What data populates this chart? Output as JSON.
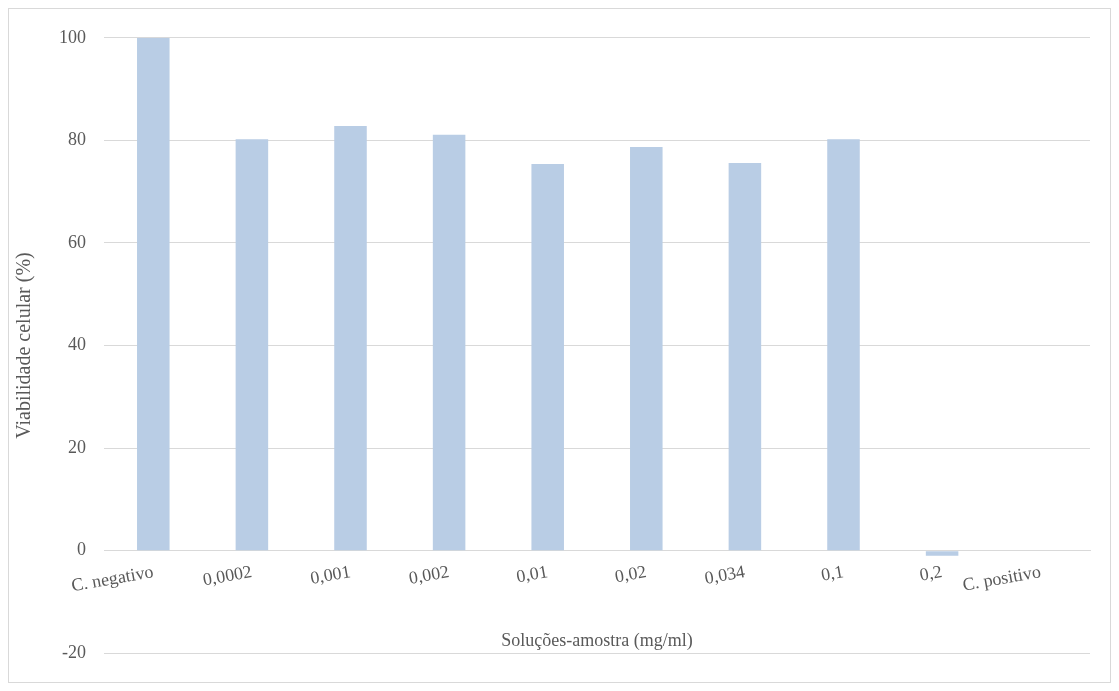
{
  "chart_data": {
    "type": "bar",
    "xlabel": "Soluções-amostra (mg/ml)",
    "ylabel": "Viabilidade celular (%)",
    "categories": [
      "C. negativo",
      "0,0002",
      "0,001",
      "0,002",
      "0,01",
      "0,02",
      "0,034",
      "0,1",
      "0,2",
      "C. positivo"
    ],
    "values": [
      100,
      80.2,
      82.8,
      81.1,
      75.4,
      78.7,
      75.6,
      80.2,
      -1,
      0
    ],
    "color": "#b9cde5",
    "ylim": [
      -20,
      100
    ],
    "yticks": [
      -20,
      0,
      20,
      40,
      60,
      80,
      100
    ],
    "grid": "y",
    "legend": false
  }
}
